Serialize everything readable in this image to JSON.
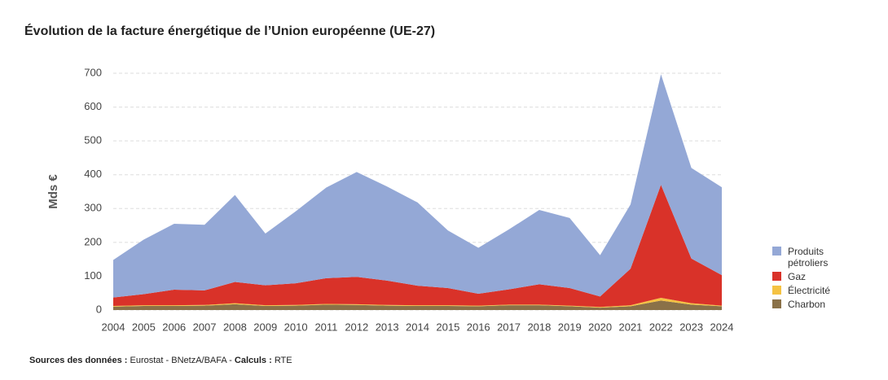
{
  "chart_data": {
    "type": "stacked_area",
    "title": "Évolution de la facture énergétique de l’Union européenne (UE-27)",
    "y_label": "Mds €",
    "categories": [
      "2004",
      "2005",
      "2006",
      "2007",
      "2008",
      "2009",
      "2010",
      "2011",
      "2012",
      "2013",
      "2014",
      "2015",
      "2016",
      "2017",
      "2018",
      "2019",
      "2020",
      "2021",
      "2022",
      "2023",
      "2024"
    ],
    "series": [
      {
        "name": "Produits pétroliers",
        "color": "#94a8d6",
        "values": [
          111,
          161,
          195,
          194,
          257,
          153,
          213,
          268,
          310,
          278,
          246,
          170,
          136,
          177,
          220,
          207,
          122,
          190,
          327,
          268,
          260
        ]
      },
      {
        "name": "Gaz",
        "color": "#d93229",
        "values": [
          25,
          33,
          46,
          43,
          63,
          59,
          64,
          76,
          81,
          72,
          58,
          51,
          35,
          45,
          60,
          52,
          31,
          108,
          334,
          132,
          90
        ]
      },
      {
        "name": "Électricité",
        "color": "#f5c242",
        "values": [
          2,
          2,
          2,
          2,
          3,
          2,
          2,
          2,
          2,
          2,
          2,
          2,
          2,
          2,
          2,
          2,
          2,
          3,
          8,
          4,
          2
        ]
      },
      {
        "name": "Charbon",
        "color": "#8a7148",
        "values": [
          10,
          12,
          12,
          13,
          17,
          12,
          13,
          16,
          15,
          13,
          12,
          12,
          11,
          14,
          14,
          11,
          7,
          11,
          28,
          16,
          11
        ]
      }
    ],
    "ylim": [
      0,
      700
    ],
    "yticks": [
      0,
      100,
      200,
      300,
      400,
      500,
      600,
      700
    ],
    "grid": true,
    "source_label": "Sources des données :",
    "source_text": "Eurostat - BNetzA/BAFA -",
    "calc_label": "Calculs :",
    "calc_text": "RTE"
  }
}
